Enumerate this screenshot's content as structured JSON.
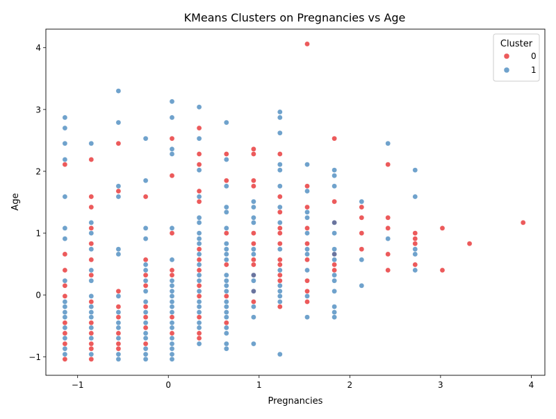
{
  "chart_data": {
    "type": "scatter",
    "title": "KMeans Clusters on Pregnancies vs Age",
    "xlabel": "Pregnancies",
    "ylabel": "Age",
    "xlim": [
      -1.35,
      4.15
    ],
    "ylim": [
      -1.3,
      4.3
    ],
    "xticks": [
      -1,
      0,
      1,
      2,
      3,
      4
    ],
    "yticks": [
      -1,
      0,
      1,
      2,
      3,
      4
    ],
    "grid": false,
    "legend": {
      "title": "Cluster",
      "placement": "top-right"
    },
    "series": [
      {
        "name": "0",
        "color": "#e41a1c",
        "points": [
          [
            -1.14,
            2.11
          ],
          [
            -1.14,
            0.66
          ],
          [
            -1.14,
            0.4
          ],
          [
            -1.14,
            0.15
          ],
          [
            -1.14,
            -0.02
          ],
          [
            -1.14,
            -0.45
          ],
          [
            -1.14,
            -0.62
          ],
          [
            -1.14,
            -0.79
          ],
          [
            -1.14,
            -1.04
          ],
          [
            -0.85,
            2.19
          ],
          [
            -0.85,
            1.59
          ],
          [
            -0.85,
            1.42
          ],
          [
            -0.85,
            1.08
          ],
          [
            -0.85,
            0.83
          ],
          [
            -0.85,
            0.57
          ],
          [
            -0.85,
            0.32
          ],
          [
            -0.85,
            -0.11
          ],
          [
            -0.85,
            -0.45
          ],
          [
            -0.85,
            -0.62
          ],
          [
            -0.85,
            -0.79
          ],
          [
            -0.85,
            -0.87
          ],
          [
            -0.85,
            -1.04
          ],
          [
            -0.55,
            2.45
          ],
          [
            -0.55,
            1.68
          ],
          [
            -0.55,
            0.06
          ],
          [
            -0.55,
            -0.19
          ],
          [
            -0.55,
            -0.36
          ],
          [
            -0.55,
            -0.62
          ],
          [
            -0.55,
            -0.79
          ],
          [
            -0.55,
            -0.87
          ],
          [
            -0.25,
            1.59
          ],
          [
            -0.25,
            0.57
          ],
          [
            -0.25,
            0.32
          ],
          [
            -0.25,
            0.15
          ],
          [
            -0.25,
            -0.19
          ],
          [
            -0.25,
            -0.36
          ],
          [
            -0.25,
            -0.53
          ],
          [
            -0.25,
            -0.79
          ],
          [
            0.04,
            2.53
          ],
          [
            0.04,
            1.93
          ],
          [
            0.04,
            1.0
          ],
          [
            0.04,
            0.4
          ],
          [
            0.04,
            0.32
          ],
          [
            0.04,
            -0.36
          ],
          [
            0.04,
            -0.62
          ],
          [
            0.34,
            2.7
          ],
          [
            0.34,
            2.28
          ],
          [
            0.34,
            2.11
          ],
          [
            0.34,
            1.68
          ],
          [
            0.34,
            1.51
          ],
          [
            0.34,
            0.74
          ],
          [
            0.34,
            0.57
          ],
          [
            0.34,
            0.4
          ],
          [
            0.34,
            0.15
          ],
          [
            0.34,
            -0.02
          ],
          [
            0.34,
            -0.36
          ],
          [
            0.34,
            -0.62
          ],
          [
            0.34,
            -0.7
          ],
          [
            0.64,
            2.28
          ],
          [
            0.64,
            1.85
          ],
          [
            0.64,
            1.0
          ],
          [
            0.64,
            0.49
          ],
          [
            0.64,
            -0.02
          ],
          [
            0.64,
            -0.45
          ],
          [
            0.94,
            2.36
          ],
          [
            0.94,
            2.28
          ],
          [
            0.94,
            1.85
          ],
          [
            0.94,
            1.76
          ],
          [
            0.94,
            1.0
          ],
          [
            0.94,
            0.83
          ],
          [
            0.94,
            0.57
          ],
          [
            0.94,
            0.49
          ],
          [
            0.94,
            0.32
          ],
          [
            0.94,
            0.06
          ],
          [
            0.94,
            -0.11
          ],
          [
            1.23,
            2.28
          ],
          [
            1.23,
            1.59
          ],
          [
            1.23,
            1.34
          ],
          [
            1.23,
            1.08
          ],
          [
            1.23,
            1.0
          ],
          [
            1.23,
            0.83
          ],
          [
            1.23,
            0.57
          ],
          [
            1.23,
            0.49
          ],
          [
            1.23,
            0.32
          ],
          [
            1.23,
            0.23
          ],
          [
            1.23,
            -0.19
          ],
          [
            1.53,
            4.06
          ],
          [
            1.53,
            1.76
          ],
          [
            1.53,
            1.42
          ],
          [
            1.53,
            1.08
          ],
          [
            1.53,
            0.83
          ],
          [
            1.53,
            0.57
          ],
          [
            1.53,
            0.23
          ],
          [
            1.53,
            0.06
          ],
          [
            1.53,
            -0.11
          ],
          [
            1.83,
            2.53
          ],
          [
            1.83,
            1.51
          ],
          [
            1.83,
            1.17
          ],
          [
            1.83,
            0.66
          ],
          [
            1.83,
            0.49
          ],
          [
            1.83,
            0.4
          ],
          [
            2.13,
            1.42
          ],
          [
            2.13,
            1.25
          ],
          [
            2.13,
            1.0
          ],
          [
            2.13,
            0.74
          ],
          [
            2.42,
            2.11
          ],
          [
            2.42,
            1.25
          ],
          [
            2.42,
            1.08
          ],
          [
            2.42,
            0.66
          ],
          [
            2.42,
            0.4
          ],
          [
            2.72,
            1.0
          ],
          [
            2.72,
            0.91
          ],
          [
            2.72,
            0.83
          ],
          [
            2.72,
            0.49
          ],
          [
            3.02,
            1.08
          ],
          [
            3.02,
            0.4
          ],
          [
            3.32,
            0.83
          ],
          [
            3.91,
            1.17
          ]
        ]
      },
      {
        "name": "1",
        "color": "#377eb8",
        "points": [
          [
            -1.14,
            2.87
          ],
          [
            -1.14,
            2.7
          ],
          [
            -1.14,
            2.45
          ],
          [
            -1.14,
            2.19
          ],
          [
            -1.14,
            1.59
          ],
          [
            -1.14,
            1.08
          ],
          [
            -1.14,
            0.91
          ],
          [
            -1.14,
            0.23
          ],
          [
            -1.14,
            -0.11
          ],
          [
            -1.14,
            -0.19
          ],
          [
            -1.14,
            -0.28
          ],
          [
            -1.14,
            -0.36
          ],
          [
            -1.14,
            -0.53
          ],
          [
            -1.14,
            -0.7
          ],
          [
            -1.14,
            -0.87
          ],
          [
            -1.14,
            -0.96
          ],
          [
            -0.85,
            2.45
          ],
          [
            -0.85,
            1.17
          ],
          [
            -0.85,
            1.0
          ],
          [
            -0.85,
            0.74
          ],
          [
            -0.85,
            0.4
          ],
          [
            -0.85,
            0.23
          ],
          [
            -0.85,
            -0.02
          ],
          [
            -0.85,
            -0.19
          ],
          [
            -0.85,
            -0.28
          ],
          [
            -0.85,
            -0.36
          ],
          [
            -0.85,
            -0.53
          ],
          [
            -0.85,
            -0.7
          ],
          [
            -0.85,
            -0.96
          ],
          [
            -0.55,
            3.3
          ],
          [
            -0.55,
            2.79
          ],
          [
            -0.55,
            1.76
          ],
          [
            -0.55,
            1.59
          ],
          [
            -0.55,
            0.74
          ],
          [
            -0.55,
            0.66
          ],
          [
            -0.55,
            -0.02
          ],
          [
            -0.55,
            -0.28
          ],
          [
            -0.55,
            -0.45
          ],
          [
            -0.55,
            -0.53
          ],
          [
            -0.55,
            -0.7
          ],
          [
            -0.55,
            -0.96
          ],
          [
            -0.55,
            -1.04
          ],
          [
            -0.25,
            2.53
          ],
          [
            -0.25,
            1.85
          ],
          [
            -0.25,
            1.08
          ],
          [
            -0.25,
            0.91
          ],
          [
            -0.25,
            0.49
          ],
          [
            -0.25,
            0.4
          ],
          [
            -0.25,
            0.23
          ],
          [
            -0.25,
            0.06
          ],
          [
            -0.25,
            -0.11
          ],
          [
            -0.25,
            -0.28
          ],
          [
            -0.25,
            -0.45
          ],
          [
            -0.25,
            -0.62
          ],
          [
            -0.25,
            -0.7
          ],
          [
            -0.25,
            -0.87
          ],
          [
            -0.25,
            -0.96
          ],
          [
            -0.25,
            -1.04
          ],
          [
            0.04,
            3.13
          ],
          [
            0.04,
            2.87
          ],
          [
            0.04,
            2.36
          ],
          [
            0.04,
            2.28
          ],
          [
            0.04,
            1.08
          ],
          [
            0.04,
            0.57
          ],
          [
            0.04,
            0.23
          ],
          [
            0.04,
            0.15
          ],
          [
            0.04,
            0.06
          ],
          [
            0.04,
            -0.02
          ],
          [
            0.04,
            -0.11
          ],
          [
            0.04,
            -0.19
          ],
          [
            0.04,
            -0.28
          ],
          [
            0.04,
            -0.45
          ],
          [
            0.04,
            -0.53
          ],
          [
            0.04,
            -0.7
          ],
          [
            0.04,
            -0.79
          ],
          [
            0.04,
            -0.87
          ],
          [
            0.04,
            -0.96
          ],
          [
            0.04,
            -1.04
          ],
          [
            0.34,
            3.04
          ],
          [
            0.34,
            2.53
          ],
          [
            0.34,
            2.02
          ],
          [
            0.34,
            1.59
          ],
          [
            0.34,
            1.25
          ],
          [
            0.34,
            1.17
          ],
          [
            0.34,
            1.0
          ],
          [
            0.34,
            0.91
          ],
          [
            0.34,
            0.83
          ],
          [
            0.34,
            0.66
          ],
          [
            0.34,
            0.49
          ],
          [
            0.34,
            0.32
          ],
          [
            0.34,
            0.23
          ],
          [
            0.34,
            0.06
          ],
          [
            0.34,
            -0.11
          ],
          [
            0.34,
            -0.19
          ],
          [
            0.34,
            -0.28
          ],
          [
            0.34,
            -0.45
          ],
          [
            0.34,
            -0.53
          ],
          [
            0.34,
            -0.79
          ],
          [
            0.64,
            2.79
          ],
          [
            0.64,
            2.19
          ],
          [
            0.64,
            1.76
          ],
          [
            0.64,
            1.42
          ],
          [
            0.64,
            1.34
          ],
          [
            0.64,
            1.08
          ],
          [
            0.64,
            0.83
          ],
          [
            0.64,
            0.74
          ],
          [
            0.64,
            0.66
          ],
          [
            0.64,
            0.57
          ],
          [
            0.64,
            0.32
          ],
          [
            0.64,
            0.23
          ],
          [
            0.64,
            0.15
          ],
          [
            0.64,
            0.06
          ],
          [
            0.64,
            -0.11
          ],
          [
            0.64,
            -0.19
          ],
          [
            0.64,
            -0.28
          ],
          [
            0.64,
            -0.36
          ],
          [
            0.64,
            -0.53
          ],
          [
            0.64,
            -0.62
          ],
          [
            0.64,
            -0.79
          ],
          [
            0.64,
            -0.87
          ],
          [
            0.94,
            1.51
          ],
          [
            0.94,
            1.42
          ],
          [
            0.94,
            1.25
          ],
          [
            0.94,
            1.17
          ],
          [
            0.94,
            0.74
          ],
          [
            0.94,
            0.66
          ],
          [
            0.94,
            0.32
          ],
          [
            0.94,
            0.23
          ],
          [
            0.94,
            0.06
          ],
          [
            0.94,
            -0.19
          ],
          [
            0.94,
            -0.36
          ],
          [
            0.94,
            -0.79
          ],
          [
            1.23,
            2.96
          ],
          [
            1.23,
            2.87
          ],
          [
            1.23,
            2.62
          ],
          [
            1.23,
            2.11
          ],
          [
            1.23,
            2.02
          ],
          [
            1.23,
            1.76
          ],
          [
            1.23,
            1.42
          ],
          [
            1.23,
            1.17
          ],
          [
            1.23,
            0.74
          ],
          [
            1.23,
            0.4
          ],
          [
            1.23,
            0.15
          ],
          [
            1.23,
            0.06
          ],
          [
            1.23,
            -0.02
          ],
          [
            1.23,
            -0.11
          ],
          [
            1.23,
            -0.96
          ],
          [
            1.53,
            2.11
          ],
          [
            1.53,
            1.68
          ],
          [
            1.53,
            1.34
          ],
          [
            1.53,
            1.25
          ],
          [
            1.53,
            1.0
          ],
          [
            1.53,
            0.74
          ],
          [
            1.53,
            0.66
          ],
          [
            1.53,
            0.4
          ],
          [
            1.53,
            -0.02
          ],
          [
            1.53,
            -0.36
          ],
          [
            1.83,
            2.02
          ],
          [
            1.83,
            1.93
          ],
          [
            1.83,
            1.76
          ],
          [
            1.83,
            1.17
          ],
          [
            1.83,
            1.0
          ],
          [
            1.83,
            0.74
          ],
          [
            1.83,
            0.66
          ],
          [
            1.83,
            0.57
          ],
          [
            1.83,
            0.32
          ],
          [
            1.83,
            0.23
          ],
          [
            1.83,
            0.06
          ],
          [
            1.83,
            -0.19
          ],
          [
            1.83,
            -0.28
          ],
          [
            1.83,
            -0.36
          ],
          [
            2.13,
            1.51
          ],
          [
            2.13,
            0.57
          ],
          [
            2.13,
            0.15
          ],
          [
            2.42,
            2.45
          ],
          [
            2.42,
            0.91
          ],
          [
            2.72,
            2.02
          ],
          [
            2.72,
            1.59
          ],
          [
            2.72,
            0.74
          ],
          [
            2.72,
            0.66
          ],
          [
            2.72,
            0.4
          ]
        ]
      }
    ]
  }
}
